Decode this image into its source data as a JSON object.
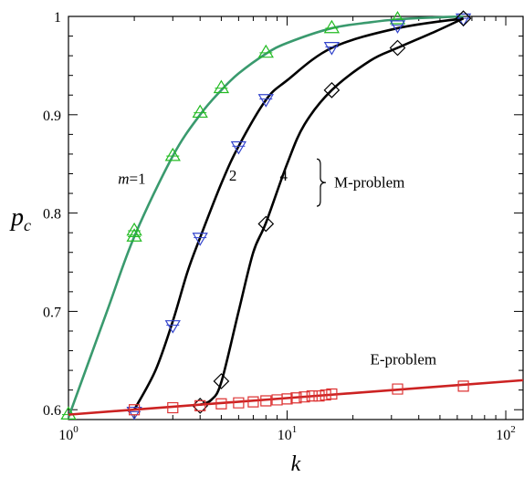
{
  "chart_data": {
    "type": "line",
    "title": "",
    "xlabel": "k",
    "ylabel_main": "p",
    "ylabel_sub": "c",
    "x_scale": "log",
    "xlim": [
      1,
      120
    ],
    "ylim": [
      0.59,
      1.0
    ],
    "x_ticks": [
      {
        "value": 1,
        "base": "10",
        "exp": "0"
      },
      {
        "value": 10,
        "base": "10",
        "exp": "1"
      },
      {
        "value": 100,
        "base": "10",
        "exp": "2"
      }
    ],
    "y_ticks": [
      {
        "value": 0.6,
        "label": "0.6"
      },
      {
        "value": 0.7,
        "label": "0.7"
      },
      {
        "value": 0.8,
        "label": "0.8"
      },
      {
        "value": 0.9,
        "label": "0.9"
      },
      {
        "value": 1.0,
        "label": "1"
      }
    ],
    "grid": false,
    "series": [
      {
        "key": "m1",
        "color": "#3a9a6e",
        "marker": "triangle-up",
        "marker_color": "#22bb22",
        "curve": {
          "x": [
            1,
            1.5,
            2,
            3,
            4,
            5,
            6,
            8,
            10,
            16,
            24,
            32,
            48,
            64
          ],
          "y": [
            0.592,
            0.7,
            0.776,
            0.858,
            0.9,
            0.925,
            0.942,
            0.962,
            0.973,
            0.988,
            0.994,
            0.997,
            0.999,
            1.0
          ]
        },
        "points": {
          "x": [
            1,
            2,
            2,
            3,
            4,
            5,
            8,
            16,
            32
          ],
          "y": [
            0.595,
            0.776,
            0.782,
            0.858,
            0.902,
            0.927,
            0.963,
            0.988,
            0.997
          ]
        }
      },
      {
        "key": "m2",
        "color": "#000000",
        "marker": "triangle-down",
        "marker_color": "#3344cc",
        "curve": {
          "x": [
            2,
            2.5,
            3,
            3.5,
            4,
            5,
            6,
            8,
            10,
            16,
            32,
            64
          ],
          "y": [
            0.6,
            0.64,
            0.69,
            0.74,
            0.775,
            0.83,
            0.868,
            0.915,
            0.935,
            0.968,
            0.988,
            0.998
          ]
        },
        "points": {
          "x": [
            2,
            3,
            4,
            6,
            8,
            16,
            32,
            64
          ],
          "y": [
            0.598,
            0.686,
            0.775,
            0.868,
            0.916,
            0.969,
            0.991,
            0.998
          ]
        }
      },
      {
        "key": "m4",
        "color": "#000000",
        "marker": "diamond",
        "marker_color": "#000000",
        "curve": {
          "x": [
            4,
            4.5,
            5,
            6,
            7,
            8,
            10,
            12,
            16,
            24,
            32,
            48,
            64
          ],
          "y": [
            0.605,
            0.61,
            0.628,
            0.7,
            0.76,
            0.79,
            0.85,
            0.89,
            0.925,
            0.955,
            0.968,
            0.985,
            0.998
          ]
        },
        "points": {
          "x": [
            4,
            5,
            8,
            16,
            32,
            64
          ],
          "y": [
            0.604,
            0.629,
            0.789,
            0.925,
            0.968,
            0.998
          ]
        }
      },
      {
        "key": "e",
        "color": "#cc2222",
        "marker": "square",
        "marker_color": "#dd3333",
        "curve": {
          "x": [
            1,
            120
          ],
          "y": [
            0.595,
            0.63
          ]
        },
        "points": {
          "x": [
            2,
            3,
            4,
            5,
            6,
            7,
            8,
            9,
            10,
            11,
            12,
            13,
            14,
            15,
            16,
            32,
            64
          ],
          "y": [
            0.6,
            0.602,
            0.604,
            0.606,
            0.607,
            0.608,
            0.609,
            0.61,
            0.611,
            0.612,
            0.613,
            0.614,
            0.614,
            0.615,
            0.616,
            0.621,
            0.624
          ]
        }
      }
    ],
    "annotations": {
      "m1_label": {
        "text": "m=1",
        "x": 1.95,
        "y": 0.83
      },
      "m2_label": {
        "text": "2",
        "x": 5.65,
        "y": 0.833
      },
      "m4_label": {
        "text": "4",
        "x": 9.65,
        "y": 0.833
      },
      "brace": {
        "x": 14.2,
        "y_top": 0.855,
        "y_bottom": 0.807
      },
      "m_problem": {
        "text": "M-problem",
        "x": 16.4,
        "y": 0.826
      },
      "e_problem": {
        "text": "E-problem",
        "x": 34.0,
        "y": 0.646
      }
    }
  }
}
